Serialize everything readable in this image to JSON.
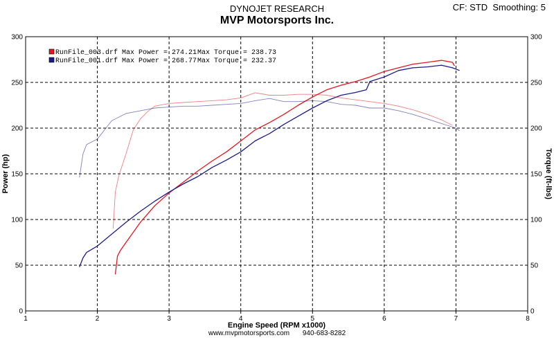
{
  "header": {
    "line1": "DYNOJET RESEARCH",
    "line2": "MVP Motorsports Inc.",
    "settings": "CF: STD  Smoothing: 5"
  },
  "footer": {
    "website": "www.mvpmotorsports.com",
    "phone": "940-683-8282"
  },
  "chart_data": {
    "type": "line",
    "xlabel": "Engine Speed (RPM x1000)",
    "ylabel_left": "Power (hp)",
    "ylabel_right": "Torque (ft-lbs)",
    "xlim": [
      1,
      8
    ],
    "ylim": [
      0,
      300
    ],
    "x_ticks": [
      "1",
      "2",
      "3",
      "4",
      "5",
      "6",
      "7",
      "8"
    ],
    "y_ticks": [
      "0",
      "50",
      "100",
      "150",
      "200",
      "250",
      "300"
    ],
    "grid": true,
    "legend_placement": "top-left",
    "legend": [
      {
        "text": "RunFile_003.drf Max Power = 274.21",
        "torque_text": "Max Torque = 238.73",
        "color": "#e8141e"
      },
      {
        "text": "RunFile_001.drf Max Power = 268.77",
        "torque_text": "Max Torque = 232.37",
        "color": "#1a1a8c"
      }
    ],
    "series": [
      {
        "id": "run003_power",
        "color": "#e8141e",
        "x": [
          2.25,
          2.28,
          2.32,
          2.4,
          2.5,
          2.6,
          2.7,
          2.8,
          3.0,
          3.2,
          3.4,
          3.6,
          3.8,
          4.0,
          4.2,
          4.4,
          4.6,
          4.8,
          5.0,
          5.2,
          5.4,
          5.6,
          5.8,
          6.0,
          6.2,
          6.4,
          6.6,
          6.8,
          6.95,
          6.98
        ],
        "y": [
          40,
          60,
          66,
          75,
          86,
          97,
          106,
          115,
          129,
          141,
          153,
          164,
          174,
          186,
          198,
          206,
          215,
          225,
          234,
          242,
          247,
          251,
          256,
          262,
          266,
          270,
          272,
          274.2,
          272,
          268
        ]
      },
      {
        "id": "run001_power",
        "color": "#1a1a8c",
        "x": [
          1.75,
          1.8,
          1.85,
          2.0,
          2.2,
          2.4,
          2.6,
          2.8,
          3.0,
          3.2,
          3.4,
          3.6,
          3.8,
          4.0,
          4.2,
          4.4,
          4.6,
          4.8,
          5.0,
          5.2,
          5.4,
          5.6,
          5.75,
          5.8,
          6.0,
          6.2,
          6.4,
          6.6,
          6.8,
          6.95,
          7.05
        ],
        "y": [
          48,
          58,
          64,
          71,
          84,
          97,
          109,
          120,
          130,
          139,
          147,
          157,
          165,
          174,
          186,
          194,
          204,
          213,
          222,
          230,
          236,
          239,
          242,
          251,
          256,
          263,
          266,
          267,
          268.8,
          266,
          263
        ]
      },
      {
        "id": "run003_torque",
        "color": "#e8141e",
        "faint": true,
        "x": [
          2.22,
          2.25,
          2.3,
          2.4,
          2.5,
          2.6,
          2.7,
          2.8,
          3.0,
          3.2,
          3.4,
          3.6,
          3.8,
          4.0,
          4.2,
          4.4,
          4.6,
          4.8,
          5.0,
          5.2,
          5.4,
          5.6,
          5.8,
          6.0,
          6.2,
          6.4,
          6.6,
          6.8,
          6.95
        ],
        "y": [
          90,
          130,
          148,
          172,
          198,
          210,
          218,
          224,
          227,
          228,
          229,
          230,
          231,
          233,
          238.7,
          236,
          236,
          237,
          237,
          236,
          233,
          231,
          229,
          227,
          224,
          220,
          215,
          209,
          203
        ]
      },
      {
        "id": "run001_torque",
        "color": "#1a1a8c",
        "faint": true,
        "x": [
          1.75,
          1.8,
          1.85,
          2.0,
          2.2,
          2.4,
          2.6,
          2.8,
          3.0,
          3.2,
          3.4,
          3.6,
          3.8,
          4.0,
          4.2,
          4.4,
          4.6,
          4.8,
          5.0,
          5.2,
          5.4,
          5.6,
          5.8,
          6.0,
          6.2,
          6.4,
          6.6,
          6.8,
          7.0,
          7.05
        ],
        "y": [
          146,
          172,
          182,
          188,
          208,
          216,
          219,
          222,
          223,
          224,
          224,
          225,
          226,
          227,
          230,
          232.4,
          229,
          229,
          230,
          229,
          226,
          225,
          222,
          222,
          219,
          215,
          210,
          205,
          200,
          197
        ]
      }
    ]
  }
}
